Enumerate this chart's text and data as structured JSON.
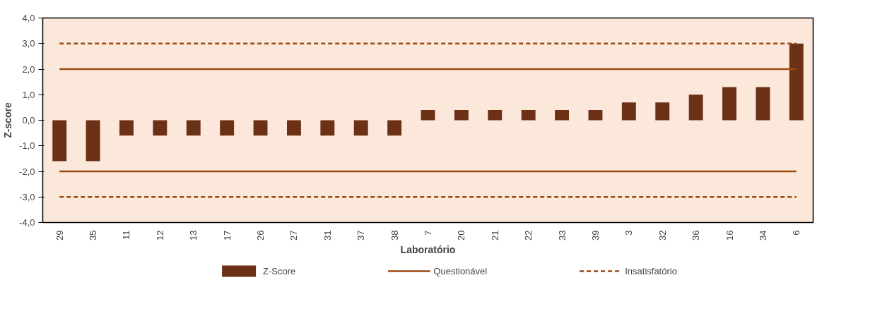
{
  "chart_data": {
    "type": "bar",
    "xlabel": "Laboratório",
    "ylabel": "Z-score",
    "categories": [
      "29",
      "35",
      "11",
      "12",
      "13",
      "17",
      "26",
      "27",
      "31",
      "37",
      "38",
      "7",
      "20",
      "21",
      "22",
      "33",
      "39",
      "3",
      "32",
      "36",
      "16",
      "34",
      "6"
    ],
    "series": [
      {
        "name": "Z-Score",
        "color": "#6b3015",
        "values": [
          -1.6,
          -1.6,
          -0.6,
          -0.6,
          -0.6,
          -0.6,
          -0.6,
          -0.6,
          -0.6,
          -0.6,
          -0.6,
          0.4,
          0.4,
          0.4,
          0.4,
          0.4,
          0.4,
          0.7,
          0.7,
          1.0,
          1.3,
          1.3,
          3.0
        ]
      },
      {
        "name": "Questionável",
        "type": "line",
        "line_style": "solid",
        "color": "#9a4a10",
        "values": [
          2,
          2,
          2,
          2,
          2,
          2,
          2,
          2,
          2,
          2,
          2,
          2,
          2,
          2,
          2,
          2,
          2,
          2,
          2,
          2,
          2,
          2,
          2
        ]
      },
      {
        "type": "line",
        "line_style": "solid",
        "color": "#9a4a10",
        "values": [
          -2,
          -2,
          -2,
          -2,
          -2,
          -2,
          -2,
          -2,
          -2,
          -2,
          -2,
          -2,
          -2,
          -2,
          -2,
          -2,
          -2,
          -2,
          -2,
          -2,
          -2,
          -2,
          -2
        ]
      },
      {
        "name": "Insatisfatório",
        "type": "line",
        "line_style": "dashed",
        "color": "#9a4a10",
        "values": [
          3,
          3,
          3,
          3,
          3,
          3,
          3,
          3,
          3,
          3,
          3,
          3,
          3,
          3,
          3,
          3,
          3,
          3,
          3,
          3,
          3,
          3,
          3
        ]
      },
      {
        "type": "line",
        "line_style": "dashed",
        "color": "#9a4a10",
        "values": [
          -3,
          -3,
          -3,
          -3,
          -3,
          -3,
          -3,
          -3,
          -3,
          -3,
          -3,
          -3,
          -3,
          -3,
          -3,
          -3,
          -3,
          -3,
          -3,
          -3,
          -3,
          -3,
          -3
        ]
      }
    ],
    "ylim": [
      -4,
      4
    ],
    "yticks": [
      {
        "value": -4,
        "label": "-4,0"
      },
      {
        "value": -3,
        "label": "-3,0"
      },
      {
        "value": -2,
        "label": "-2,0"
      },
      {
        "value": -1,
        "label": "-1,0"
      },
      {
        "value": 0,
        "label": "0,0"
      },
      {
        "value": 1,
        "label": "1,0"
      },
      {
        "value": 2,
        "label": "2,0"
      },
      {
        "value": 3,
        "label": "3,0"
      },
      {
        "value": 4,
        "label": "4,0"
      }
    ],
    "grid": false,
    "legend": "bottom"
  }
}
